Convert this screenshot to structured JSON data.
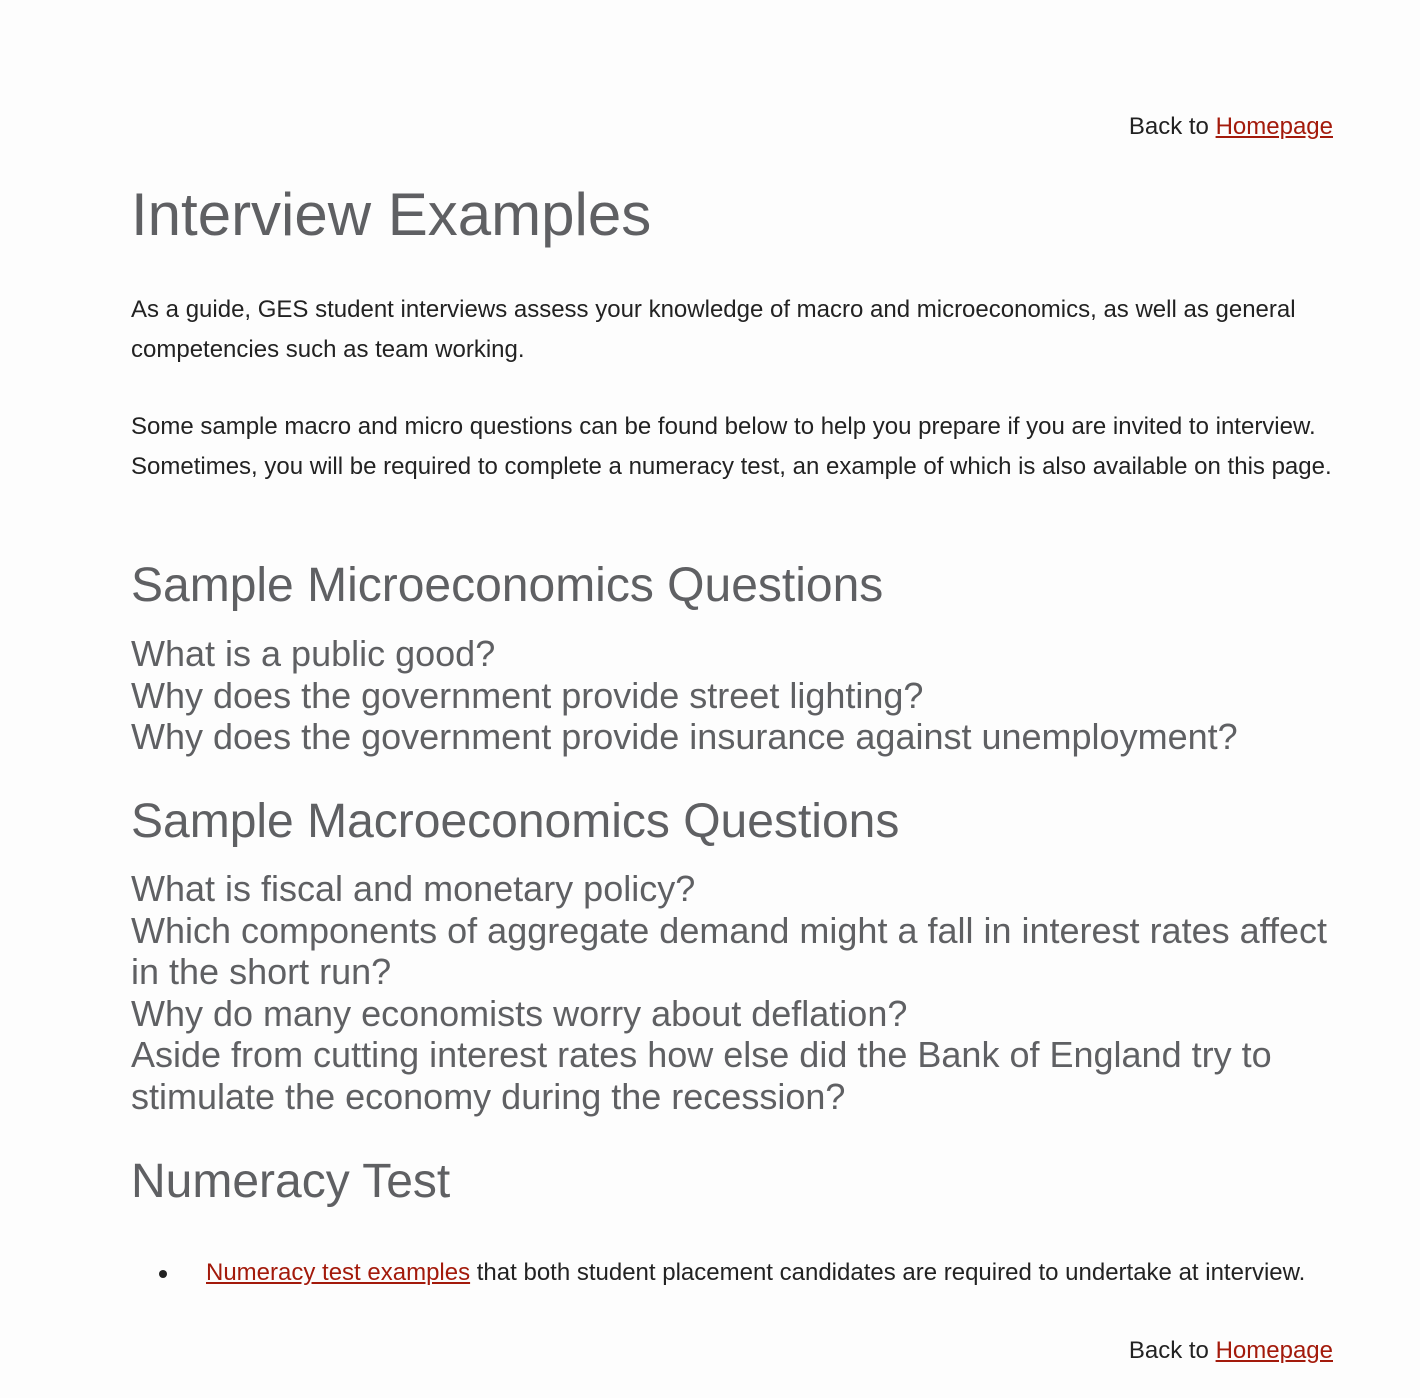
{
  "nav": {
    "back_prefix": "Back to",
    "homepage_link": "Homepage"
  },
  "title": "Interview Examples",
  "intro": [
    "As a guide, GES student interviews assess your knowledge of macro and microeconomics, as well as general competencies such as team working.",
    "Some sample macro and micro questions can be found below to help you prepare if you are invited to interview. Sometimes, you will be required to complete a numeracy test, an example of which is also available on this page."
  ],
  "micro": {
    "heading": "Sample Microeconomics Questions",
    "questions": [
      "What is a public good?",
      "Why does the government provide street lighting?",
      "Why does the government provide insurance against unemployment?"
    ]
  },
  "macro": {
    "heading": "Sample Macroeconomics Questions",
    "questions": [
      "What is fiscal and monetary policy?",
      "Which components of aggregate demand might a fall in interest rates affect in the short run?",
      "Why do many economists worry about deflation?",
      "Aside from cutting interest rates how else did the Bank of England try to stimulate the economy during the recession?"
    ]
  },
  "numeracy": {
    "heading": "Numeracy Test",
    "link_text": "Numeracy test examples",
    "link_suffix": "that both student placement candidates are required to undertake at interview."
  },
  "colors": {
    "link": "#a31a0b",
    "heading": "#5f6063",
    "body_text": "#222222"
  }
}
